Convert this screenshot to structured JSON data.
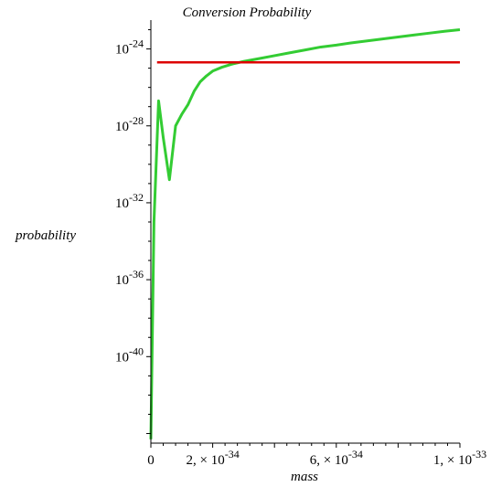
{
  "chart_data": {
    "type": "line",
    "title": "Conversion Probability",
    "xlabel": "mass",
    "ylabel": "probability",
    "x_scale": "linear",
    "y_scale": "log",
    "xlim": [
      0,
      1e-33
    ],
    "ylim_log10": [
      -44.5,
      -22.5
    ],
    "grid": false,
    "x_ticks": [
      {
        "value": 0,
        "label": "0"
      },
      {
        "value": 2e-34,
        "label": "2, × 10",
        "exp": "-34"
      },
      {
        "value": 6e-34,
        "label": "6, × 10",
        "exp": "-34"
      },
      {
        "value": 1e-33,
        "label": "1, × 10",
        "exp": "-33"
      }
    ],
    "y_ticks": [
      {
        "log10": -24,
        "label": "10",
        "exp": "-24"
      },
      {
        "log10": -28,
        "label": "10",
        "exp": "-28"
      },
      {
        "log10": -32,
        "label": "10",
        "exp": "-32"
      },
      {
        "log10": -36,
        "label": "10",
        "exp": "-36"
      },
      {
        "log10": -40,
        "label": "10",
        "exp": "-40"
      }
    ],
    "series": [
      {
        "color": "#33cc33",
        "x": [
          0,
          1e-35,
          2.5e-35,
          4e-35,
          6e-35,
          8e-35,
          1e-34,
          1.2e-34,
          1.4e-34,
          1.6e-34,
          1.8e-34,
          2e-34,
          2.3e-34,
          2.6e-34,
          3e-34,
          3.5e-34,
          4e-34,
          4.5e-34,
          5e-34,
          5.5e-34,
          6e-34,
          6.5e-34,
          7e-34,
          7.5e-34,
          8e-34,
          8.5e-34,
          9e-34,
          9.5e-34,
          1e-33
        ],
        "log10_y": [
          -44.3,
          -33,
          -26.7,
          -28.6,
          -30.8,
          -28,
          -27.4,
          -26.9,
          -26.2,
          -25.7,
          -25.4,
          -25.15,
          -24.95,
          -24.8,
          -24.65,
          -24.5,
          -24.35,
          -24.2,
          -24.05,
          -23.9,
          -23.8,
          -23.68,
          -23.58,
          -23.48,
          -23.38,
          -23.28,
          -23.18,
          -23.08,
          -23.0
        ]
      },
      {
        "color": "#dd0000",
        "x": [
          2e-35,
          1e-33
        ],
        "log10_y": [
          -24.7,
          -24.7
        ]
      }
    ]
  }
}
